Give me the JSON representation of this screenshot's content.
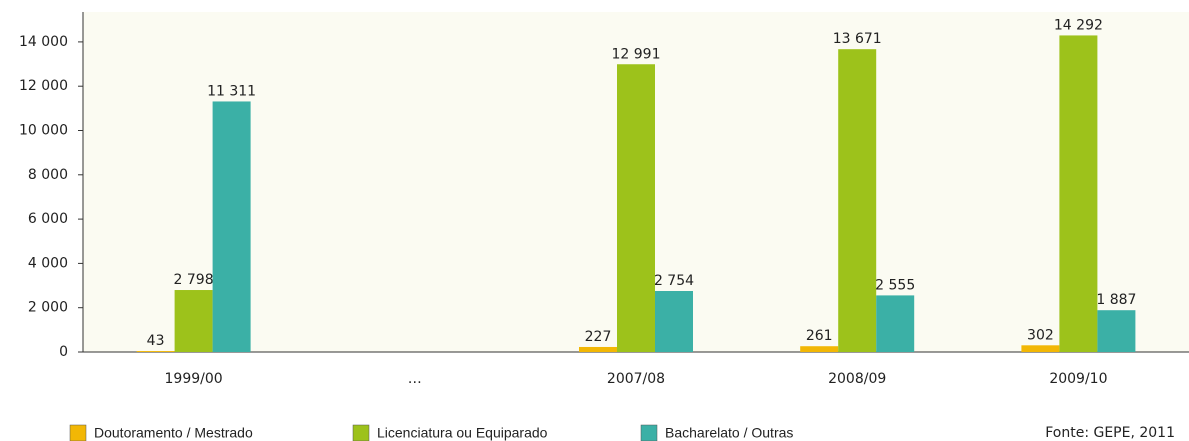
{
  "chart_data": {
    "type": "bar",
    "categories": [
      "1999/00",
      "…",
      "2007/08",
      "2008/09",
      "2009/10"
    ],
    "series": [
      {
        "name": "Doutoramento / Mestrado",
        "color": "#f2b705",
        "values": [
          43,
          null,
          227,
          261,
          302
        ],
        "value_labels": [
          "43",
          null,
          "227",
          "261",
          "302"
        ]
      },
      {
        "name": "Licenciatura ou Equiparado",
        "color": "#9dc21b",
        "values": [
          2798,
          null,
          12991,
          13671,
          14292
        ],
        "value_labels": [
          "2 798",
          null,
          "12 991",
          "13 671",
          "14 292"
        ]
      },
      {
        "name": "Bacharelato / Outras",
        "color": "#3bb0a6",
        "values": [
          11311,
          null,
          2754,
          2555,
          1887
        ],
        "value_labels": [
          "11 311",
          null,
          "2 754",
          "2 555",
          "1 887"
        ]
      }
    ],
    "ylim": [
      0,
      15350
    ],
    "yticks": [
      0,
      {
        "value": 2000,
        "label": "2 000"
      },
      {
        "value": 4000,
        "label": "4 000"
      },
      {
        "value": 6000,
        "label": "6 000"
      },
      {
        "value": 8000,
        "label": "8 000"
      },
      {
        "value": 10000,
        "label": "10 000"
      },
      {
        "value": 12000,
        "label": "12 000"
      },
      {
        "value": 14000,
        "label": "14 000"
      }
    ],
    "source": "Fonte: GEPE, 2011"
  }
}
